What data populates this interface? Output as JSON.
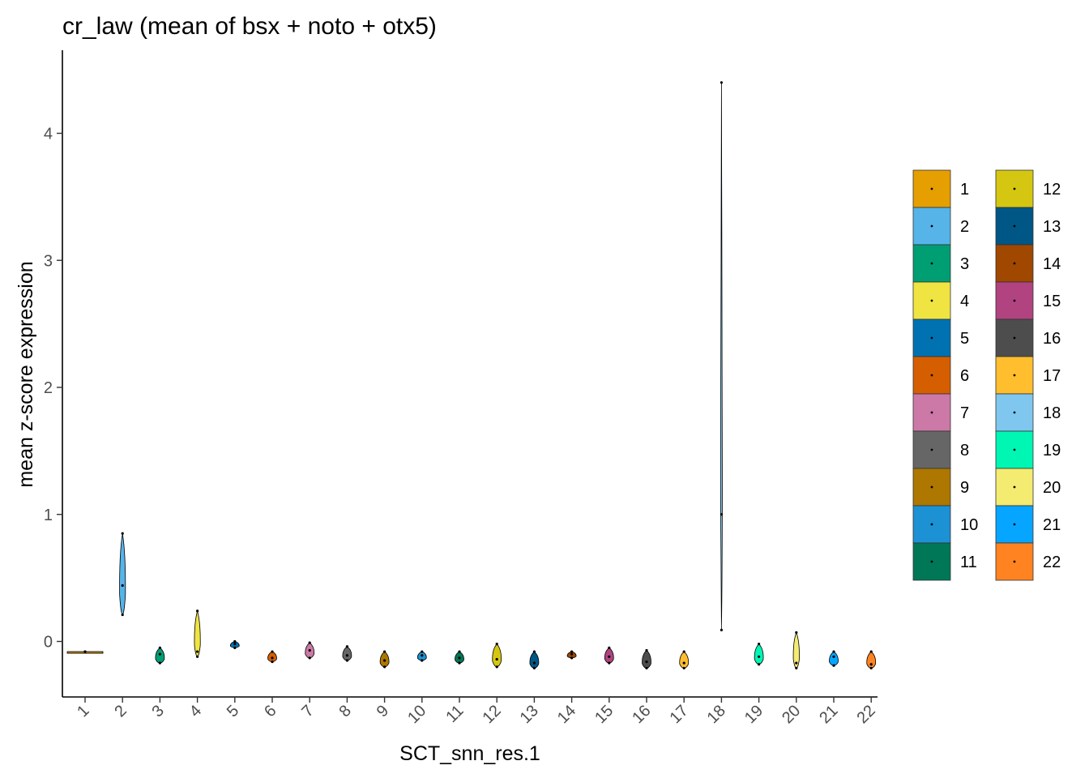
{
  "chart_data": {
    "type": "violin",
    "title": "cr_law (mean of bsx + noto + otx5)",
    "xlabel": "SCT_snn_res.1",
    "ylabel": "mean z-score expression",
    "ylim": [
      -0.45,
      4.6
    ],
    "yticks": [
      0,
      1,
      2,
      3,
      4
    ],
    "grid": false,
    "legend_position": "right",
    "categories": [
      "1",
      "2",
      "3",
      "4",
      "5",
      "6",
      "7",
      "8",
      "9",
      "10",
      "11",
      "12",
      "13",
      "14",
      "15",
      "16",
      "17",
      "18",
      "19",
      "20",
      "21",
      "22"
    ],
    "series": [
      {
        "name": "1",
        "color": "#E69F00",
        "min": -0.08,
        "max": -0.08,
        "points": [
          -0.08,
          -0.08
        ]
      },
      {
        "name": "2",
        "color": "#56B4E9",
        "min": 0.21,
        "max": 0.85,
        "points": [
          0.21,
          0.44,
          0.85
        ]
      },
      {
        "name": "3",
        "color": "#009E73",
        "min": -0.17,
        "max": -0.05,
        "points": [
          -0.17,
          -0.1,
          -0.05
        ]
      },
      {
        "name": "4",
        "color": "#F0E442",
        "min": -0.12,
        "max": 0.24,
        "points": [
          -0.12,
          -0.08,
          0.24
        ]
      },
      {
        "name": "5",
        "color": "#0072B2",
        "min": -0.05,
        "max": 0.0,
        "points": [
          -0.05,
          -0.02,
          0.0
        ]
      },
      {
        "name": "6",
        "color": "#D55E00",
        "min": -0.16,
        "max": -0.08,
        "points": [
          -0.16,
          -0.13,
          -0.08
        ]
      },
      {
        "name": "7",
        "color": "#CC79A7",
        "min": -0.13,
        "max": -0.01,
        "points": [
          -0.13,
          -0.07,
          -0.01
        ]
      },
      {
        "name": "8",
        "color": "#666666",
        "min": -0.15,
        "max": -0.04,
        "points": [
          -0.15,
          -0.11,
          -0.04
        ]
      },
      {
        "name": "9",
        "color": "#AD7700",
        "min": -0.2,
        "max": -0.08,
        "points": [
          -0.2,
          -0.15,
          -0.08
        ]
      },
      {
        "name": "10",
        "color": "#1C91D4",
        "min": -0.15,
        "max": -0.08,
        "points": [
          -0.15,
          -0.11,
          -0.08
        ]
      },
      {
        "name": "11",
        "color": "#007756",
        "min": -0.17,
        "max": -0.08,
        "points": [
          -0.17,
          -0.13,
          -0.08
        ]
      },
      {
        "name": "12",
        "color": "#D5C711",
        "min": -0.2,
        "max": -0.02,
        "points": [
          -0.2,
          -0.14,
          -0.02
        ]
      },
      {
        "name": "13",
        "color": "#005685",
        "min": -0.21,
        "max": -0.08,
        "points": [
          -0.21,
          -0.17,
          -0.08
        ]
      },
      {
        "name": "14",
        "color": "#A04700",
        "min": -0.13,
        "max": -0.08,
        "points": [
          -0.13,
          -0.1,
          -0.08
        ]
      },
      {
        "name": "15",
        "color": "#B14380",
        "min": -0.17,
        "max": -0.05,
        "points": [
          -0.17,
          -0.12,
          -0.05
        ]
      },
      {
        "name": "16",
        "color": "#4D4D4D",
        "min": -0.21,
        "max": -0.07,
        "points": [
          -0.21,
          -0.16,
          -0.07
        ]
      },
      {
        "name": "17",
        "color": "#FFBE2D",
        "min": -0.21,
        "max": -0.08,
        "points": [
          -0.21,
          -0.17,
          -0.08
        ]
      },
      {
        "name": "18",
        "color": "#80C7EF",
        "min": 0.09,
        "max": 4.4,
        "points": [
          0.09,
          1.0,
          4.4
        ]
      },
      {
        "name": "19",
        "color": "#00F6B3",
        "min": -0.18,
        "max": -0.02,
        "points": [
          -0.18,
          -0.12,
          -0.02
        ]
      },
      {
        "name": "20",
        "color": "#F4EB71",
        "min": -0.21,
        "max": 0.07,
        "points": [
          -0.21,
          -0.17,
          0.07
        ]
      },
      {
        "name": "21",
        "color": "#06A5FF",
        "min": -0.19,
        "max": -0.08,
        "points": [
          -0.19,
          -0.12,
          -0.08
        ]
      },
      {
        "name": "22",
        "color": "#FF8320",
        "min": -0.21,
        "max": -0.08,
        "points": [
          -0.21,
          -0.18,
          -0.08
        ]
      }
    ]
  }
}
